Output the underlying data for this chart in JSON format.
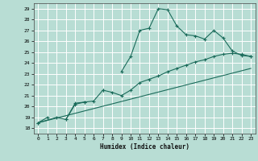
{
  "title": "",
  "xlabel": "Humidex (Indice chaleur)",
  "bg_color": "#b8ddd4",
  "grid_color": "#ffffff",
  "line_color": "#1a6b5a",
  "xlim": [
    -0.5,
    23.5
  ],
  "ylim": [
    17.5,
    29.5
  ],
  "xticks": [
    0,
    1,
    2,
    3,
    4,
    5,
    6,
    7,
    8,
    9,
    10,
    11,
    12,
    13,
    14,
    15,
    16,
    17,
    18,
    19,
    20,
    21,
    22,
    23
  ],
  "yticks": [
    18,
    19,
    20,
    21,
    22,
    23,
    24,
    25,
    26,
    27,
    28,
    29
  ],
  "series1_x": [
    0,
    1,
    2,
    3,
    4,
    5,
    6,
    7,
    8,
    9,
    10,
    11,
    12,
    13,
    14,
    15,
    16,
    17,
    18,
    19,
    20,
    21,
    22,
    23
  ],
  "series1_y": [
    18.5,
    19.0,
    null,
    18.8,
    20.3,
    20.4,
    null,
    21.5,
    null,
    23.2,
    24.6,
    27.0,
    27.2,
    29.0,
    28.9,
    27.4,
    26.6,
    26.5,
    26.2,
    27.0,
    26.3,
    25.1,
    24.7,
    24.6
  ],
  "series2_x": [
    0,
    2,
    3,
    4,
    5,
    6,
    7,
    8,
    9,
    10,
    11,
    12,
    13,
    14,
    15,
    16,
    17,
    18,
    19,
    20,
    21,
    22,
    23
  ],
  "series2_y": [
    18.5,
    19.0,
    18.8,
    20.2,
    20.4,
    20.5,
    21.5,
    21.3,
    21.0,
    21.5,
    22.2,
    22.5,
    22.8,
    23.2,
    23.5,
    23.8,
    24.1,
    24.3,
    24.6,
    24.8,
    24.9,
    24.8,
    24.6
  ],
  "series3_x": [
    0,
    23
  ],
  "series3_y": [
    18.5,
    23.5
  ]
}
